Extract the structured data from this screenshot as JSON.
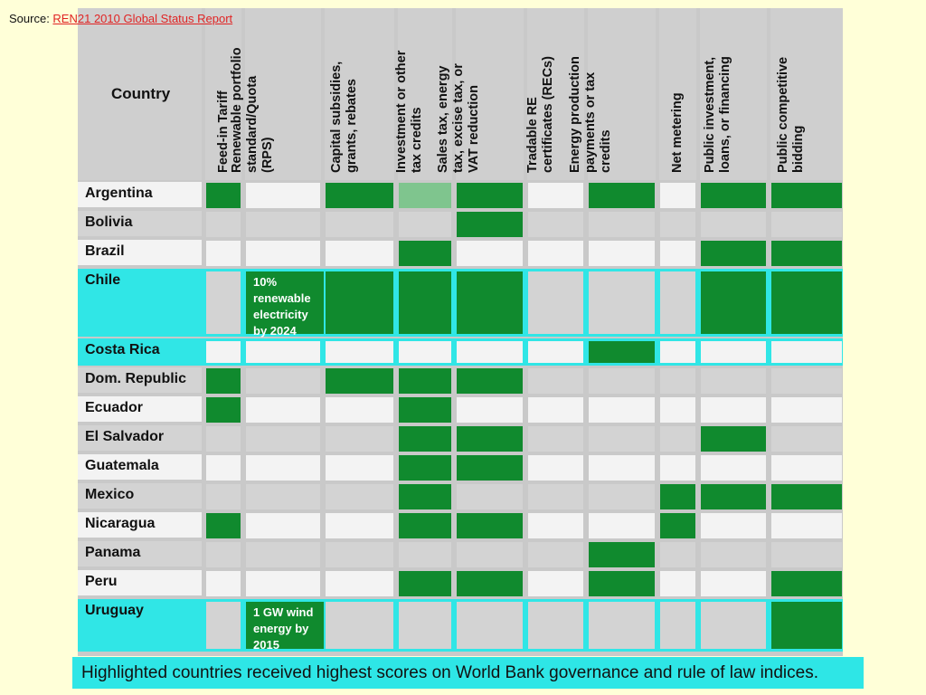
{
  "source": {
    "prefix": "Source: ",
    "link_text": "REN21 2010 Global Status Report"
  },
  "header": {
    "country_label": "Country",
    "columns": [
      "Feed-in Tariff",
      "Renewable portfolio\nstandard/Quota\n(RPS)",
      "Capital subsidies,\ngrants, rebates",
      "Investment or other\ntax credits",
      "Sales tax, energy\ntax, excise tax, or\nVAT reduction",
      "Tradable RE\ncertificates (RECs)",
      "Energy production\npayments or tax\ncredits",
      "Net metering",
      "Public investment,\nloans, or financing",
      "Public competitive\nbidding"
    ]
  },
  "rows": [
    {
      "country": "Argentina",
      "highlight": false,
      "cells": [
        "g",
        "",
        "g",
        "lg",
        "g",
        "",
        "g",
        "",
        "g",
        "g"
      ]
    },
    {
      "country": "Bolivia",
      "highlight": false,
      "cells": [
        "",
        "",
        "",
        "",
        "g",
        "",
        "",
        "",
        "",
        ""
      ]
    },
    {
      "country": "Brazil",
      "highlight": false,
      "cells": [
        "",
        "",
        "",
        "g",
        "",
        "",
        "",
        "",
        "g",
        "g"
      ]
    },
    {
      "country": "Chile",
      "highlight": true,
      "cells": [
        "",
        "g",
        "g",
        "g",
        "g",
        "",
        "",
        "",
        "g",
        "g"
      ],
      "note_col": 1,
      "note": "10%\nrenewable\nelectricity\nby 2024"
    },
    {
      "country": "Costa Rica",
      "highlight": true,
      "cells": [
        "",
        "",
        "",
        "",
        "",
        "",
        "g",
        "",
        "",
        ""
      ]
    },
    {
      "country": "Dom. Republic",
      "highlight": false,
      "cells": [
        "g",
        "",
        "g",
        "g",
        "g",
        "",
        "",
        "",
        "",
        ""
      ]
    },
    {
      "country": "Ecuador",
      "highlight": false,
      "cells": [
        "g",
        "",
        "",
        "g",
        "",
        "",
        "",
        "",
        "",
        ""
      ]
    },
    {
      "country": "El Salvador",
      "highlight": false,
      "cells": [
        "",
        "",
        "",
        "g",
        "g",
        "",
        "",
        "",
        "g",
        ""
      ]
    },
    {
      "country": "Guatemala",
      "highlight": false,
      "cells": [
        "",
        "",
        "",
        "g",
        "g",
        "",
        "",
        "",
        "",
        ""
      ]
    },
    {
      "country": "Mexico",
      "highlight": false,
      "cells": [
        "",
        "",
        "",
        "g",
        "",
        "",
        "",
        "g",
        "g",
        "g"
      ]
    },
    {
      "country": "Nicaragua",
      "highlight": false,
      "cells": [
        "g",
        "",
        "",
        "g",
        "g",
        "",
        "",
        "g",
        "",
        ""
      ]
    },
    {
      "country": "Panama",
      "highlight": false,
      "cells": [
        "",
        "",
        "",
        "",
        "",
        "",
        "g",
        "",
        "",
        ""
      ]
    },
    {
      "country": "Peru",
      "highlight": false,
      "cells": [
        "",
        "",
        "",
        "g",
        "g",
        "",
        "g",
        "",
        "",
        "g"
      ]
    },
    {
      "country": "Uruguay",
      "highlight": true,
      "cells": [
        "",
        "g",
        "",
        "",
        "",
        "",
        "",
        "",
        "",
        "g"
      ],
      "note_col": 1,
      "note": "1 GW wind\nenergy by\n2015"
    }
  ],
  "footnote": "Highlighted countries received highest scores on World Bank governance and rule of law indices.",
  "colors": {
    "green": "#108a2e",
    "light_green": "#7fc58e",
    "highlight": "#30e6e6",
    "background": "#ffffd8"
  }
}
